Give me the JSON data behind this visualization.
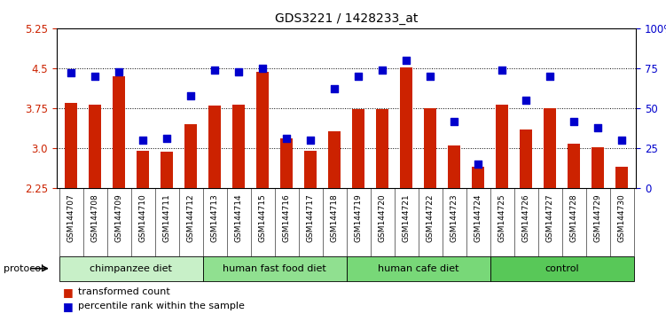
{
  "title": "GDS3221 / 1428233_at",
  "samples": [
    "GSM144707",
    "GSM144708",
    "GSM144709",
    "GSM144710",
    "GSM144711",
    "GSM144712",
    "GSM144713",
    "GSM144714",
    "GSM144715",
    "GSM144716",
    "GSM144717",
    "GSM144718",
    "GSM144719",
    "GSM144720",
    "GSM144721",
    "GSM144722",
    "GSM144723",
    "GSM144724",
    "GSM144725",
    "GSM144726",
    "GSM144727",
    "GSM144728",
    "GSM144729",
    "GSM144730"
  ],
  "bar_values": [
    3.85,
    3.82,
    4.35,
    2.95,
    2.93,
    3.45,
    3.8,
    3.82,
    4.43,
    3.18,
    2.95,
    3.32,
    3.73,
    3.74,
    4.52,
    3.75,
    3.06,
    2.65,
    3.82,
    3.35,
    3.75,
    3.08,
    3.02,
    2.65
  ],
  "pct_values": [
    72,
    70,
    73,
    30,
    31,
    58,
    74,
    73,
    75,
    31,
    30,
    62,
    70,
    74,
    80,
    70,
    42,
    15,
    74,
    55,
    70,
    42,
    38,
    30
  ],
  "groups": [
    {
      "label": "chimpanzee diet",
      "start": 0,
      "end": 6,
      "color": "#c8f0c8"
    },
    {
      "label": "human fast food diet",
      "start": 6,
      "end": 12,
      "color": "#90e090"
    },
    {
      "label": "human cafe diet",
      "start": 12,
      "end": 18,
      "color": "#78d878"
    },
    {
      "label": "control",
      "start": 18,
      "end": 24,
      "color": "#58c858"
    }
  ],
  "bar_color": "#cc2200",
  "pct_color": "#0000cc",
  "ylim_left": [
    2.25,
    5.25
  ],
  "ylim_right": [
    0,
    100
  ],
  "yticks_left": [
    2.25,
    3.0,
    3.75,
    4.5,
    5.25
  ],
  "yticks_right": [
    0,
    25,
    50,
    75,
    100
  ],
  "ytick_labels_right": [
    "0",
    "25",
    "50",
    "75",
    "100%"
  ],
  "hlines": [
    3.0,
    3.75,
    4.5
  ],
  "background_color": "#ffffff",
  "bar_width": 0.55,
  "legend_items": [
    {
      "label": "transformed count",
      "color": "#cc2200"
    },
    {
      "label": "percentile rank within the sample",
      "color": "#0000cc"
    }
  ]
}
